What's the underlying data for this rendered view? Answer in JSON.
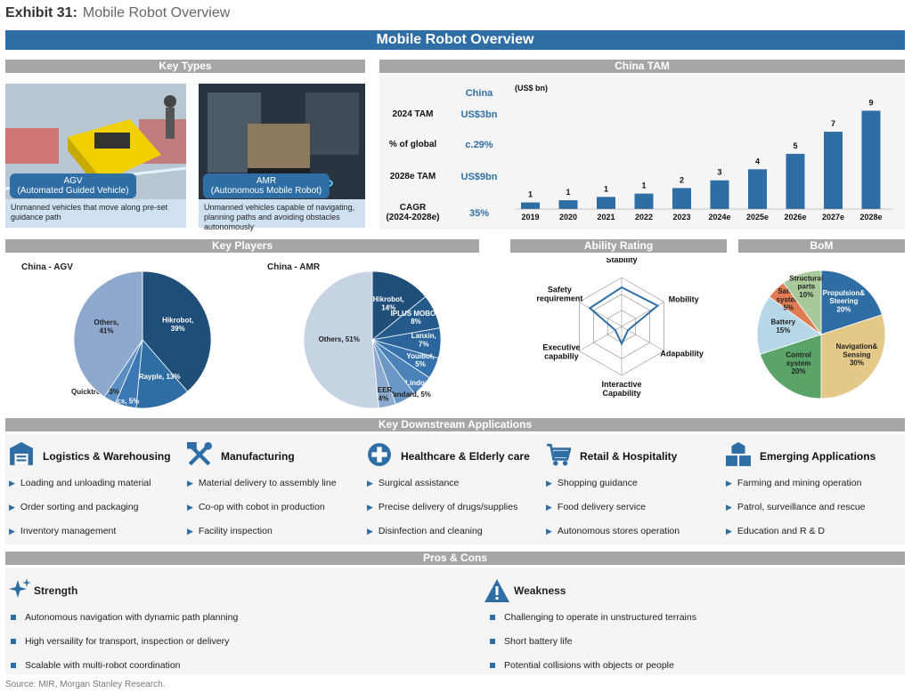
{
  "header": {
    "exhibit": "Exhibit 31:",
    "subtitle": "Mobile Robot Overview"
  },
  "main_title": "Mobile Robot Overview",
  "sections": {
    "key_types": "Key Types",
    "china_tam": "China TAM",
    "key_players": "Key Players",
    "ability_rating": "Ability Rating",
    "bom": "BoM",
    "downstream": "Key Downstream Applications",
    "pros_cons": "Pros & Cons"
  },
  "key_types": [
    {
      "caption_l1": "AGV",
      "caption_l2": "(Automated Guided Vehicle)",
      "desc": "Unmanned vehicles that move along pre-set guidance path"
    },
    {
      "caption_l1": "AMR",
      "caption_l2": "(Autonomous Mobile Robot)",
      "desc": "Unmanned vehicles capable of navigating, planning paths and avoiding obstacles autonomously"
    }
  ],
  "tam_table": {
    "col_header": "China",
    "rows": [
      {
        "label": "2024 TAM",
        "value": "US$3bn"
      },
      {
        "label": "% of global",
        "value": "c.29%"
      },
      {
        "label": "2028e TAM",
        "value": "US$9bn"
      },
      {
        "label": "CAGR\n(2024-2028e)",
        "value": "35%"
      }
    ]
  },
  "colors": {
    "primary": "#2f6ea4",
    "dark": "#1f4e79",
    "grey_bar": "#a6a6a6",
    "light_blue": "#cfe0f1"
  },
  "chart_data": [
    {
      "type": "bar",
      "unit": "(US$ bn)",
      "categories": [
        "2019",
        "2020",
        "2021",
        "2022",
        "2023",
        "2024e",
        "2025e",
        "2026e",
        "2027e",
        "2028e"
      ],
      "values": [
        1,
        1,
        1,
        1,
        2,
        3,
        4,
        5,
        7,
        9
      ],
      "bar_heights": [
        0.6,
        0.8,
        1.1,
        1.4,
        1.9,
        2.6,
        3.6,
        5.0,
        7.0,
        8.9
      ],
      "ylim": [
        0,
        9.5
      ]
    },
    {
      "type": "pie",
      "title": "China - AGV",
      "slices": [
        {
          "label": "Hikrobot,\n39%",
          "value": 39,
          "color": "#1f4e79"
        },
        {
          "label": "Rayple, 13%",
          "value": 13,
          "color": "#2f6ea4"
        },
        {
          "label": "Hai Robotics, 5%",
          "value": 5,
          "color": "#3b78b4"
        },
        {
          "label": "Quicktron, 3%",
          "value": 3,
          "color": "#5b8fc4"
        },
        {
          "label": "Others,\n41%",
          "value": 41,
          "color": "#8ea9cd"
        }
      ]
    },
    {
      "type": "pie",
      "title": "China - AMR",
      "slices": [
        {
          "label": "Hikrobot,\n14%",
          "value": 14,
          "color": "#1f4e79"
        },
        {
          "label": "IPLUS MOBOT,\n8%",
          "value": 8,
          "color": "#245a8c"
        },
        {
          "label": "Lanxin,\n7%",
          "value": 7,
          "color": "#2b659c"
        },
        {
          "label": "Youibot,\n5%",
          "value": 5,
          "color": "#3672ab"
        },
        {
          "label": "Lindong, 5%",
          "value": 5,
          "color": "#4a82b9"
        },
        {
          "label": "Standard, 5%",
          "value": 5,
          "color": "#6b97c6"
        },
        {
          "label": "SEER,\n4%",
          "value": 4,
          "color": "#8ca9cf"
        },
        {
          "label": "Others, 51%",
          "value": 51,
          "color": "#c6d3e3"
        }
      ]
    },
    {
      "type": "radar",
      "axes": [
        "Stability",
        "Mobility",
        "Adapability",
        "Interactive\nCapability",
        "Executive\ncapabiliy",
        "Safety\nrequirement"
      ],
      "values": [
        0.8,
        0.85,
        0.15,
        0.35,
        0.15,
        0.75
      ]
    },
    {
      "type": "pie",
      "title": "BoM",
      "slices": [
        {
          "label": "Propulsion&\nSteering\n20%",
          "value": 20,
          "color": "#2f6ea4"
        },
        {
          "label": "Navigation&\nSensing\n30%",
          "value": 30,
          "color": "#e3c887"
        },
        {
          "label": "Control\nsystem\n20%",
          "value": 20,
          "color": "#5aa469"
        },
        {
          "label": "Battery\n15%",
          "value": 15,
          "color": "#b7d7e8"
        },
        {
          "label": "Safety\nsystem\n5%",
          "value": 5,
          "color": "#e07b53"
        },
        {
          "label": "Structural\nparts\n10%",
          "value": 10,
          "color": "#a8c99a"
        }
      ]
    }
  ],
  "applications": [
    {
      "title": "Logistics & Warehousing",
      "icon": "warehouse-icon",
      "items": [
        "Loading and unloading material",
        "Order sorting and packaging",
        "Inventory management"
      ]
    },
    {
      "title": "Manufacturing",
      "icon": "tools-icon",
      "items": [
        "Material delivery to assembly line",
        "Co-op with cobot in production",
        "Facility inspection"
      ]
    },
    {
      "title": "Healthcare & Elderly care",
      "icon": "medical-cross-icon",
      "items": [
        "Surgical assistance",
        "Precise delivery of drugs/supplies",
        "Disinfection and cleaning"
      ]
    },
    {
      "title": "Retail & Hospitality",
      "icon": "shopping-cart-icon",
      "items": [
        "Shopping guidance",
        "Food delivery service",
        "Autonomous stores operation"
      ]
    },
    {
      "title": "Emerging Applications",
      "icon": "cubes-icon",
      "items": [
        "Farming and mining operation",
        "Patrol, surveillance and rescue",
        "Education and R & D"
      ]
    }
  ],
  "pros": {
    "title": "Strength",
    "items": [
      "Autonomous navigation with dynamic path planning",
      "High versaility for transport, inspection or delivery",
      "Scalable with multi-robot coordination"
    ]
  },
  "cons": {
    "title": "Weakness",
    "items": [
      "Challenging to operate in unstructured terrains",
      "Short battery life",
      "Potential collisions with objects or people"
    ]
  },
  "source": "Source: MIR, Morgan Stanley Research."
}
